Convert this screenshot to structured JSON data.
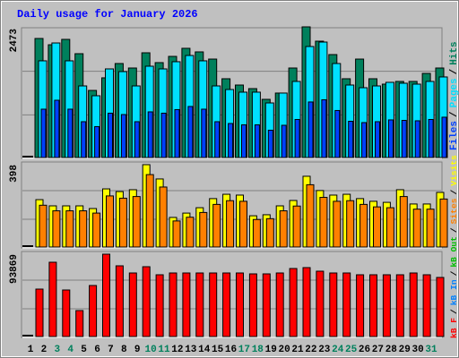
{
  "title": "Daily usage for January 2026",
  "legend_separator": "/",
  "categories": [
    "1",
    "2",
    "3",
    "4",
    "5",
    "6",
    "7",
    "8",
    "9",
    "10",
    "11",
    "12",
    "13",
    "14",
    "15",
    "16",
    "17",
    "18",
    "19",
    "20",
    "21",
    "22",
    "23",
    "24",
    "25",
    "26",
    "27",
    "28",
    "29",
    "30",
    "31"
  ],
  "category_colors": [
    "#000000",
    "#000000",
    "#00805c",
    "#00805c",
    "#000000",
    "#000000",
    "#000000",
    "#000000",
    "#000000",
    "#00805c",
    "#00805c",
    "#000000",
    "#000000",
    "#000000",
    "#000000",
    "#000000",
    "#00805c",
    "#00805c",
    "#000000",
    "#000000",
    "#000000",
    "#000000",
    "#000000",
    "#00805c",
    "#00805c",
    "#000000",
    "#000000",
    "#000000",
    "#000000",
    "#000000",
    "#00805c"
  ],
  "chart_data": [
    {
      "type": "bar",
      "ylim": [
        0,
        2473
      ],
      "yticks": [
        2473
      ],
      "series": [
        {
          "name": "Hits",
          "color": "#00805c",
          "values": [
            2253,
            2134,
            2236,
            1965,
            1270,
            1508,
            1779,
            1694,
            1982,
            1796,
            1914,
            2067,
            1999,
            1863,
            1491,
            1372,
            1304,
            1101,
            1220,
            1694,
            2473,
            2202,
            1948,
            1491,
            1863,
            1491,
            1389,
            1440,
            1440,
            1592,
            1694
          ]
        },
        {
          "name": "Pages",
          "color": "#00e0ff",
          "values": [
            1830,
            2168,
            1830,
            1355,
            1169,
            1677,
            1626,
            1355,
            1728,
            1677,
            1813,
            1931,
            1830,
            1355,
            1287,
            1237,
            1237,
            1033,
            1220,
            1440,
            2101,
            2185,
            1779,
            1372,
            1321,
            1355,
            1423,
            1406,
            1389,
            1440,
            1525
          ]
        },
        {
          "name": "Files",
          "color": "#0040ff",
          "values": [
            915,
            1084,
            915,
            678,
            585,
            839,
            813,
            678,
            864,
            839,
            907,
            966,
            915,
            678,
            644,
            619,
            619,
            517,
            610,
            720,
            1051,
            1093,
            890,
            686,
            661,
            678,
            712,
            703,
            695,
            720,
            763
          ]
        }
      ]
    },
    {
      "type": "bar",
      "ylim": [
        0,
        398
      ],
      "yticks": [
        398
      ],
      "series": [
        {
          "name": "Visits",
          "color": "#ffff00",
          "values": [
            229,
            199,
            199,
            199,
            186,
            281,
            268,
            277,
            398,
            329,
            143,
            164,
            190,
            234,
            255,
            251,
            151,
            156,
            199,
            225,
            342,
            273,
            251,
            255,
            234,
            221,
            216,
            277,
            208,
            208,
            264
          ]
        },
        {
          "name": "Sites",
          "color": "#ff8000",
          "values": [
            202,
            175,
            175,
            175,
            164,
            247,
            236,
            244,
            350,
            290,
            126,
            144,
            167,
            206,
            224,
            221,
            133,
            137,
            175,
            198,
            301,
            240,
            221,
            224,
            206,
            194,
            190,
            244,
            183,
            183,
            232
          ]
        }
      ]
    },
    {
      "type": "bar",
      "ylim": [
        0,
        93869
      ],
      "yticks": [
        93869
      ],
      "series": [
        {
          "name": "kB F",
          "color": "#ff0000",
          "values": [
            54076,
            84685,
            53056,
            29589,
            58157,
            93869,
            80604,
            72441,
            79583,
            70401,
            72441,
            72441,
            72441,
            72441,
            72441,
            72441,
            71421,
            71421,
            72441,
            77543,
            78563,
            74482,
            72441,
            72441,
            70401,
            70401,
            70401,
            70401,
            72441,
            70401,
            67340
          ]
        }
      ],
      "other_legend": [
        {
          "name": "kB In",
          "color": "#0080ff"
        },
        {
          "name": "kB Out",
          "color": "#00c000"
        }
      ]
    }
  ]
}
